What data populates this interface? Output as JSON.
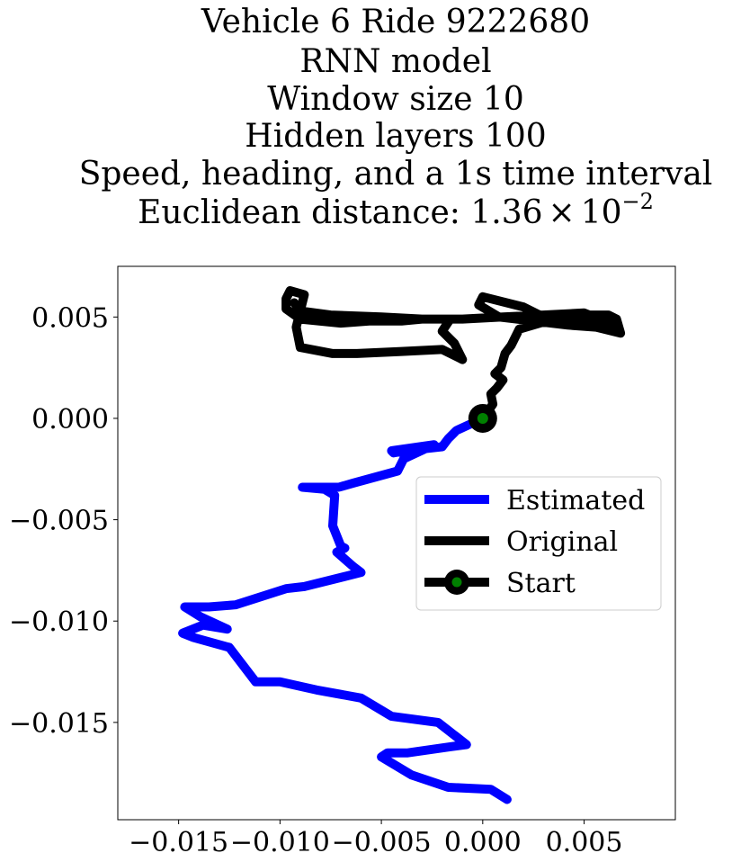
{
  "chart_data": {
    "type": "line",
    "title_lines": [
      "Vehicle 6 Ride 9222680",
      "RNN model",
      "Window size 10",
      "Hidden layers 100",
      "Speed, heading, and a 1s time interval"
    ],
    "title_distance": {
      "prefix": "Euclidean distance: 1.36",
      "times": "×",
      "base": "10",
      "exponent": "−2"
    },
    "xlabel": "",
    "ylabel": "",
    "xlim": [
      -0.018,
      0.0095
    ],
    "ylim": [
      -0.0198,
      0.0075
    ],
    "x_ticks": [
      {
        "value": -0.015,
        "label": "−0.015"
      },
      {
        "value": -0.01,
        "label": "−0.010"
      },
      {
        "value": -0.005,
        "label": "−0.005"
      },
      {
        "value": 0.0,
        "label": "0.000"
      },
      {
        "value": 0.005,
        "label": "0.005"
      }
    ],
    "y_ticks": [
      {
        "value": 0.005,
        "label": "0.005"
      },
      {
        "value": 0.0,
        "label": "0.000"
      },
      {
        "value": -0.005,
        "label": "−0.005"
      },
      {
        "value": -0.01,
        "label": "−0.010"
      },
      {
        "value": -0.015,
        "label": "−0.015"
      }
    ],
    "grid": false,
    "legend_position": "right",
    "series": [
      {
        "name": "Estimated",
        "color": "#0000ff",
        "x": [
          0.0,
          -0.0013,
          -0.0017,
          -0.002,
          -0.0038,
          -0.0044,
          -0.0045,
          -0.0024,
          -0.0039,
          -0.0042,
          -0.0064,
          -0.0071,
          -0.0089,
          -0.0078,
          -0.0073,
          -0.0074,
          -0.007,
          -0.0068,
          -0.0072,
          -0.0064,
          -0.006,
          -0.0088,
          -0.0097,
          -0.0122,
          -0.0135,
          -0.0147,
          -0.0139,
          -0.0126,
          -0.0138,
          -0.0148,
          -0.0143,
          -0.0125,
          -0.0112,
          -0.01,
          -0.0082,
          -0.006,
          -0.0045,
          -0.0022,
          -0.0008,
          -0.0016,
          -0.0037,
          -0.0047,
          -0.005,
          -0.0035,
          -0.0017,
          0.0004,
          0.0012
        ],
        "y": [
          0.0,
          -0.0006,
          -0.001,
          -0.0014,
          -0.0016,
          -0.0017,
          -0.0016,
          -0.0013,
          -0.002,
          -0.0026,
          -0.0032,
          -0.0034,
          -0.0034,
          -0.0035,
          -0.0038,
          -0.0053,
          -0.0063,
          -0.0064,
          -0.0066,
          -0.0073,
          -0.0076,
          -0.0083,
          -0.0084,
          -0.0092,
          -0.0093,
          -0.0093,
          -0.0098,
          -0.0104,
          -0.0102,
          -0.0106,
          -0.0108,
          -0.0113,
          -0.013,
          -0.013,
          -0.0134,
          -0.0138,
          -0.0147,
          -0.015,
          -0.0161,
          -0.0162,
          -0.0165,
          -0.0165,
          -0.0167,
          -0.0176,
          -0.0182,
          -0.0183,
          -0.0188
        ]
      },
      {
        "name": "Original",
        "color": "#000000",
        "x": [
          0.0,
          0.0005,
          0.0004,
          0.0007,
          0.001,
          0.0006,
          0.0009,
          0.0011,
          0.0014,
          0.0018,
          0.0035,
          0.0052,
          0.0062,
          0.0066,
          0.0068,
          0.0056,
          0.0042,
          0.0025,
          0.0008,
          -0.0002,
          0.0,
          0.002,
          0.003,
          0.004,
          0.0055,
          0.0065,
          0.005,
          0.003,
          0.001,
          -0.001,
          -0.003,
          -0.004,
          -0.0056,
          -0.007,
          -0.009,
          -0.0097,
          -0.0097,
          -0.0095,
          -0.0088,
          -0.0092,
          -0.009,
          -0.0074,
          -0.0062,
          -0.004,
          -0.002,
          -0.001,
          -0.0014,
          -0.002,
          -0.0016,
          -0.003,
          -0.005,
          -0.0075,
          -0.009,
          -0.0093
        ],
        "y": [
          0.0,
          0.0007,
          0.0012,
          0.0015,
          0.0019,
          0.0022,
          0.0025,
          0.0032,
          0.0036,
          0.0044,
          0.0049,
          0.0051,
          0.0051,
          0.0049,
          0.0042,
          0.0045,
          0.0046,
          0.0048,
          0.005,
          0.0056,
          0.006,
          0.0055,
          0.005,
          0.0047,
          0.0049,
          0.0046,
          0.0052,
          0.0051,
          0.005,
          0.0049,
          0.0049,
          0.0048,
          0.0048,
          0.0047,
          0.0049,
          0.0054,
          0.0059,
          0.0063,
          0.0061,
          0.0045,
          0.0035,
          0.0032,
          0.0032,
          0.0033,
          0.0034,
          0.0029,
          0.0037,
          0.0043,
          0.0049,
          0.0049,
          0.005,
          0.0051,
          0.0053,
          0.0057
        ]
      }
    ],
    "start_point": {
      "name": "Start",
      "x": 0.0,
      "y": 0.0,
      "outer_color": "#000000",
      "inner_color": "#008000"
    }
  }
}
